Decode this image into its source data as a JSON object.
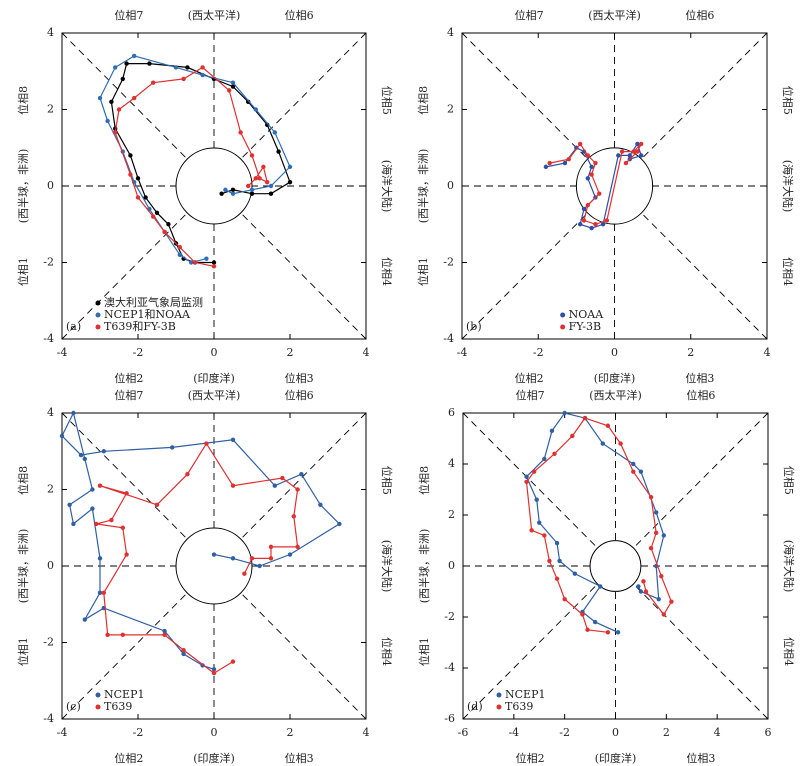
{
  "chart_data": [
    {
      "type": "line",
      "panel_label": "(a)",
      "xlim": [
        -4,
        4
      ],
      "ylim": [
        -4,
        4
      ],
      "xticks": [
        -4,
        -2,
        0,
        2,
        4
      ],
      "yticks": [
        -4,
        -2,
        0,
        2,
        4
      ],
      "top_labels": [
        "位相7",
        "(西太平洋)",
        "位相6"
      ],
      "bottom_labels": [
        "位相2",
        "(印度洋)",
        "位相3"
      ],
      "left_labels": [
        "位相8",
        "(西半球，非洲)",
        "位相1"
      ],
      "right_labels": [
        "位相5",
        "(海洋大陆)",
        "位相4"
      ],
      "legend_loc": "lower left",
      "series": [
        {
          "name": "澳大利亚气象局监测",
          "color": "#000000",
          "x": [
            0,
            -0.5,
            -0.8,
            -1,
            -1.2,
            -1.5,
            -1.8,
            -2,
            -2.2,
            -2.6,
            -2.7,
            -2.4,
            -2.3,
            -1.7,
            -0.7,
            0,
            0.5,
            0.9,
            1.4,
            1.7,
            2,
            1.5,
            1,
            0.5,
            0.2
          ],
          "y": [
            -2,
            -2,
            -1.9,
            -1.5,
            -1,
            -0.7,
            -0.3,
            0.2,
            0.8,
            1.5,
            2.2,
            2.8,
            3.2,
            3.2,
            3.1,
            2.8,
            2.6,
            2.2,
            1.6,
            0.9,
            0.1,
            -0.2,
            -0.2,
            -0.1,
            -0.2
          ]
        },
        {
          "name": "NCEP1和NOAA",
          "color": "#2f6db5",
          "x": [
            -0.2,
            -0.6,
            -0.9,
            -1.3,
            -1.7,
            -2.1,
            -2.4,
            -2.8,
            -3,
            -2.6,
            -2.1,
            -1,
            -0.3,
            0.5,
            1.1,
            1.6,
            2,
            1.5,
            1,
            0.5,
            0.3
          ],
          "y": [
            -1.9,
            -2,
            -1.8,
            -1.2,
            -0.6,
            0.1,
            0.9,
            1.7,
            2.3,
            3.1,
            3.4,
            3.1,
            2.9,
            2.7,
            2,
            1.4,
            0.5,
            0,
            -0.1,
            -0.2,
            -0.1
          ]
        },
        {
          "name": "T639和FY-3B",
          "color": "#e03030",
          "x": [
            0,
            -0.5,
            -0.9,
            -1.3,
            -1.6,
            -2,
            -2.2,
            -2.6,
            -2.5,
            -2.1,
            -1.6,
            -0.8,
            -0.3,
            0.4,
            0.7,
            1,
            1.2,
            1.4,
            1.3,
            1.1,
            0.9
          ],
          "y": [
            -2.1,
            -2,
            -1.6,
            -1.2,
            -0.8,
            -0.3,
            0.3,
            1.4,
            2,
            2.3,
            2.7,
            2.8,
            3.1,
            2.5,
            1.4,
            0.8,
            0.2,
            0.1,
            0.5,
            0.2,
            0
          ]
        }
      ]
    },
    {
      "type": "line",
      "panel_label": "(b)",
      "xlim": [
        -4,
        4
      ],
      "ylim": [
        -4,
        4
      ],
      "xticks": [
        -4,
        -2,
        0,
        2,
        4
      ],
      "yticks": [
        -4,
        -2,
        0,
        2,
        4
      ],
      "top_labels": [
        "位相7",
        "(西太平洋)",
        "位相6"
      ],
      "bottom_labels": [
        "位相2",
        "(印度洋)",
        "位相3"
      ],
      "left_labels": [
        "位相8",
        "(西半球，非洲)",
        "位相1"
      ],
      "right_labels": [
        "位相5",
        "(海洋大陆)",
        "位相4"
      ],
      "legend_loc": "lower center",
      "series": [
        {
          "name": "NOAA",
          "color": "#2f4fa5",
          "x": [
            -1.8,
            -1.3,
            -1,
            -0.8,
            -0.6,
            -0.7,
            -0.5,
            -0.8,
            -0.9,
            -0.6,
            -0.3,
            0.1,
            0.4,
            0.6,
            0.7,
            0.4
          ],
          "y": [
            0.5,
            0.6,
            1,
            0.9,
            0.5,
            0.2,
            -0.3,
            -0.6,
            -1,
            -1.1,
            -1,
            0.8,
            0.8,
            1.1,
            0.8,
            0.7
          ]
        },
        {
          "name": "FY-3B",
          "color": "#e03030",
          "x": [
            -1.7,
            -1.2,
            -0.9,
            -0.7,
            -0.5,
            -0.6,
            -0.4,
            -0.7,
            -0.8,
            -0.5,
            -0.2,
            0.2,
            0.5,
            0.7,
            0.6,
            0.3
          ],
          "y": [
            0.6,
            0.7,
            1.1,
            0.8,
            0.6,
            0.3,
            -0.2,
            -0.5,
            -0.9,
            -1,
            -0.9,
            0.9,
            0.9,
            1.1,
            0.9,
            0.6
          ]
        }
      ]
    },
    {
      "type": "line",
      "panel_label": "(c)",
      "xlim": [
        -4,
        4
      ],
      "ylim": [
        -4,
        4
      ],
      "xticks": [
        -4,
        -2,
        0,
        2,
        4
      ],
      "yticks": [
        -4,
        -2,
        0,
        2,
        4
      ],
      "top_labels": [
        "位相7",
        "(西太平洋)",
        "位相6"
      ],
      "bottom_labels": [
        "位相2",
        "(印度洋)",
        "位相3"
      ],
      "left_labels": [
        "位相8",
        "(西半球，非洲)",
        "位相1"
      ],
      "right_labels": [
        "位相5",
        "(海洋大陆)",
        "位相4"
      ],
      "legend_loc": "lower left",
      "series": [
        {
          "name": "NCEP1",
          "color": "#2f5fa5",
          "x": [
            0,
            0.5,
            1.2,
            2,
            3.3,
            2.8,
            2.3,
            1.6,
            0.5,
            -1.1,
            -2.9,
            -3.5,
            -4,
            -3.7,
            -3.4,
            -3.2,
            -3.8,
            -3.7,
            -3.2,
            -3,
            -3,
            -3.4,
            -2.9,
            -1.3,
            -0.8,
            -0.3,
            0
          ],
          "y": [
            0.3,
            0.2,
            0,
            0.3,
            1.1,
            1.6,
            2.4,
            2.1,
            3.3,
            3.1,
            3,
            2.9,
            3.4,
            4,
            2.8,
            2,
            1.6,
            1.1,
            1.5,
            0.2,
            -0.7,
            -1.4,
            -1.1,
            -1.7,
            -2.3,
            -2.6,
            -2.7
          ]
        },
        {
          "name": "T639",
          "color": "#e03030",
          "x": [
            0.5,
            0,
            -0.8,
            -1.3,
            -2.4,
            -2.8,
            -2.9,
            -2.3,
            -2.4,
            -3.1,
            -2.7,
            -2.3,
            -3,
            -1.5,
            -0.7,
            -0.2,
            0.5,
            1.8,
            2.2,
            2.1,
            2.2,
            1.5,
            1.5,
            1,
            0.8
          ],
          "y": [
            -2.5,
            -2.8,
            -2.2,
            -1.8,
            -1.8,
            -1.8,
            -0.7,
            0.3,
            1,
            1.1,
            1.2,
            1.9,
            2.1,
            1.6,
            2.4,
            3.2,
            2.1,
            2.3,
            2,
            1.3,
            0.5,
            0.5,
            0.2,
            0.2,
            -0.2
          ]
        }
      ]
    },
    {
      "type": "line",
      "panel_label": "(d)",
      "xlim": [
        -6,
        6
      ],
      "ylim": [
        -6,
        6
      ],
      "xticks": [
        -6,
        -4,
        -2,
        0,
        2,
        4,
        6
      ],
      "yticks": [
        -6,
        -4,
        -2,
        0,
        2,
        4,
        6
      ],
      "top_labels": [
        "位相7",
        "(西太平洋)",
        "位相6"
      ],
      "bottom_labels": [
        "位相2",
        "(印度洋)",
        "位相3"
      ],
      "left_labels": [
        "位相8",
        "(西半球，非洲)",
        "位相1"
      ],
      "right_labels": [
        "位相5",
        "(海洋大陆)",
        "位相4"
      ],
      "legend_loc": "lower left",
      "series": [
        {
          "name": "NCEP1",
          "color": "#2f5fa5",
          "x": [
            0.1,
            -0.8,
            -1.3,
            -0.6,
            -1.6,
            -2.2,
            -2.3,
            -3,
            -3.1,
            -3.5,
            -2.8,
            -2.5,
            -2,
            -1.2,
            -0.5,
            0.7,
            1,
            1.6,
            1.9,
            1.6,
            1.7,
            1,
            0.9
          ],
          "y": [
            -2.6,
            -2.2,
            -1.8,
            -0.8,
            -0.3,
            0.2,
            0.9,
            1.7,
            2.6,
            3.5,
            4.2,
            5.3,
            6,
            5.8,
            4.8,
            4,
            3.7,
            2.1,
            1.2,
            0,
            -1.3,
            -1,
            -0.8
          ]
        },
        {
          "name": "T639",
          "color": "#e03030",
          "x": [
            -0.3,
            -1.1,
            -1.3,
            -2,
            -2.3,
            -2.6,
            -2.8,
            -3.3,
            -3.5,
            -3.2,
            -2.4,
            -1.7,
            -1.2,
            -0.3,
            0.2,
            0.7,
            1.4,
            1.6,
            1.4,
            1.8,
            2.2,
            1.9,
            1.2,
            1.1
          ],
          "y": [
            -2.6,
            -2.5,
            -1.9,
            -1.3,
            -0.5,
            0.2,
            1.2,
            1.4,
            3.3,
            3.7,
            4.4,
            5.1,
            5.8,
            5.5,
            4.8,
            3.7,
            2.7,
            1.3,
            0.7,
            -0.4,
            -1.4,
            -1.9,
            -1,
            -0.6
          ]
        }
      ]
    }
  ]
}
